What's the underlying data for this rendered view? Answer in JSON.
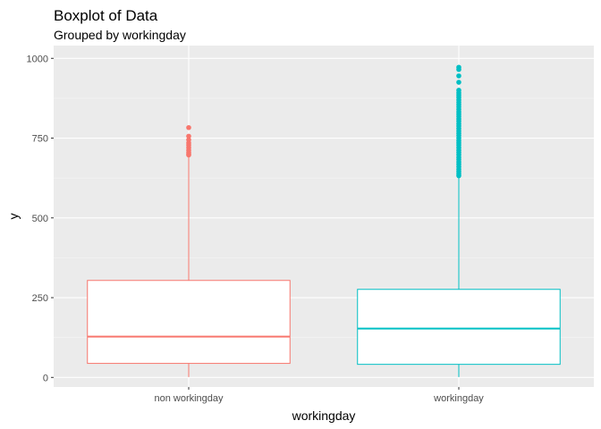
{
  "chart_data": {
    "type": "boxplot",
    "title": "Boxplot of Data",
    "subtitle": "Grouped by workingday",
    "xlabel": "workingday",
    "ylabel": "y",
    "categories": [
      "non workingday",
      "workingday"
    ],
    "ylim": [
      -30,
      1000
    ],
    "yticks": [
      0,
      250,
      500,
      750,
      1000
    ],
    "grid": true,
    "legend": "none",
    "series": [
      {
        "category": "non workingday",
        "color": "#F8766D",
        "min": 1,
        "q1": 44,
        "median": 128,
        "q3": 304,
        "whisker_high": 693,
        "outliers": [
          697,
          700,
          705,
          712,
          720,
          728,
          735,
          745,
          756,
          783
        ]
      },
      {
        "category": "workingday",
        "color": "#00BFC4",
        "min": 1,
        "q1": 41,
        "median": 153,
        "q3": 276,
        "whisker_high": 630,
        "outliers": [
          632,
          638,
          645,
          652,
          660,
          668,
          675,
          683,
          690,
          698,
          705,
          712,
          720,
          728,
          735,
          742,
          750,
          758,
          765,
          772,
          780,
          788,
          795,
          803,
          810,
          818,
          825,
          832,
          840,
          848,
          855,
          862,
          870,
          878,
          885,
          892,
          900,
          925,
          945,
          965,
          972
        ]
      }
    ]
  },
  "colors": {
    "panel_background": "#EBEBEB",
    "grid_major": "#FFFFFF",
    "grid_minor": "#F5F5F5"
  }
}
